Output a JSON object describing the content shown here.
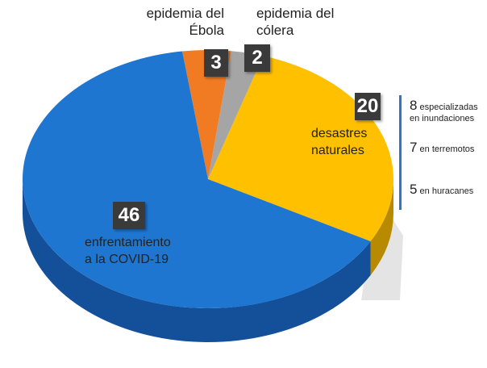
{
  "chart_data": {
    "type": "pie",
    "style": "3d",
    "categories": [
      "epidemia del Ébola",
      "epidemia del cólera",
      "desastres naturales",
      "enfrentamiento a la COVID-19"
    ],
    "values": [
      3,
      2,
      20,
      46
    ],
    "colors": [
      "#f07b22",
      "#a5a5a5",
      "#ffc000",
      "#1f76d0"
    ],
    "side_colors": [
      "#b85a14",
      "#7a7a7a",
      "#b88a00",
      "#14509a"
    ],
    "labels": [
      {
        "value": "3",
        "text_line1": "epidemia del",
        "text_line2": "Ébola"
      },
      {
        "value": "2",
        "text_line1": "epidemia del",
        "text_line2": "cólera"
      },
      {
        "value": "20",
        "text_line1": "desastres",
        "text_line2": "naturales"
      },
      {
        "value": "46",
        "text_line1": "enfrentamiento",
        "text_line2": "a la COVID-19"
      }
    ],
    "breakdown": [
      {
        "value": "8",
        "text_line1": "especializadas",
        "text_line2": "en inundaciones"
      },
      {
        "value": "7",
        "text_line1": "en terremotos"
      },
      {
        "value": "5",
        "text_line1": "en huracanes"
      }
    ],
    "bar_color": "#2e75c8"
  }
}
